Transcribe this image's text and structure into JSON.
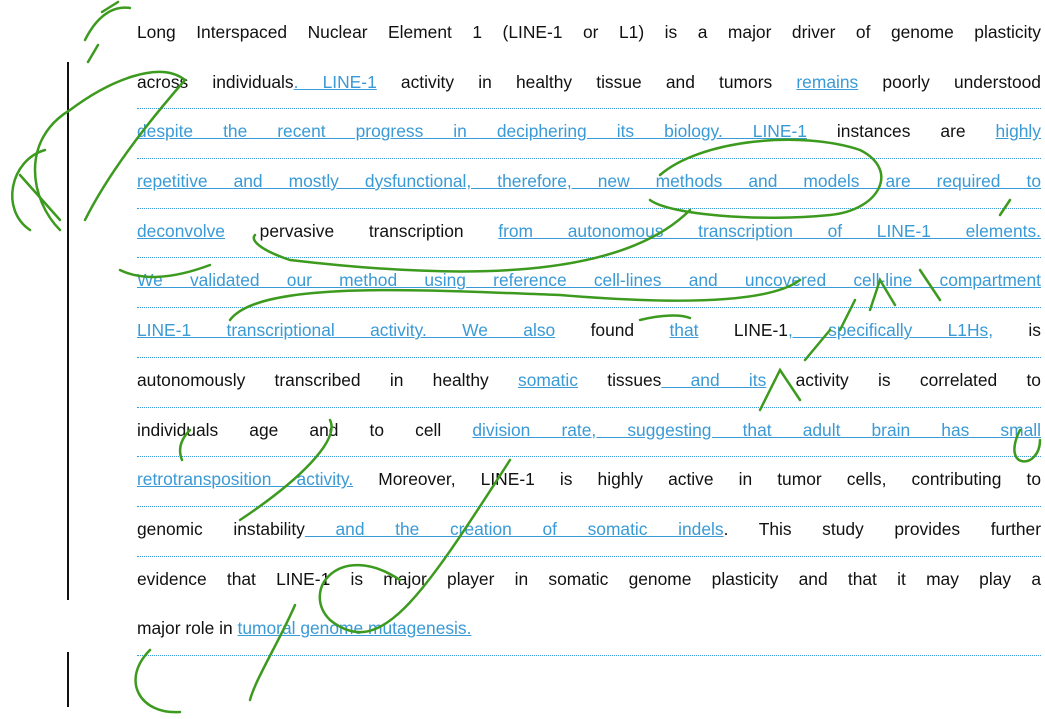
{
  "lines": [
    [
      {
        "text": "Long Interspaced Nuclear Element 1 (LINE-1 or L1) is a major driver of genome plasticity",
        "inserted": false
      }
    ],
    [
      {
        "text": "across individuals",
        "inserted": false
      },
      {
        "text": ". LINE-1",
        "inserted": true
      },
      {
        "text": " activity in healthy tissue and tumors ",
        "inserted": false
      },
      {
        "text": "remains",
        "inserted": true
      },
      {
        "text": " poorly understood",
        "inserted": false
      }
    ],
    [
      {
        "text": "despite the recent progress in deciphering its biology. LINE-1",
        "inserted": true
      },
      {
        "text": " instances are ",
        "inserted": false
      },
      {
        "text": "highly",
        "inserted": true
      }
    ],
    [
      {
        "text": "repetitive and mostly dysfunctional, therefore, new methods and models are required to",
        "inserted": true
      }
    ],
    [
      {
        "text": "deconvolve",
        "inserted": true
      },
      {
        "text": " pervasive transcription ",
        "inserted": false
      },
      {
        "text": "from autonomous transcription of LINE-1 elements.",
        "inserted": true
      }
    ],
    [
      {
        "text": "We validated our method using reference cell-lines and uncovered cell-line compartment",
        "inserted": true
      }
    ],
    [
      {
        "text": "LINE-1 transcriptional activity. We also",
        "inserted": true
      },
      {
        "text": " found ",
        "inserted": false
      },
      {
        "text": "that",
        "inserted": true
      },
      {
        "text": " LINE-1",
        "inserted": false
      },
      {
        "text": ", specifically L1Hs,",
        "inserted": true
      },
      {
        "text": " is",
        "inserted": false
      }
    ],
    [
      {
        "text": "autonomously transcribed in healthy ",
        "inserted": false
      },
      {
        "text": "somatic",
        "inserted": true
      },
      {
        "text": " tissues",
        "inserted": false
      },
      {
        "text": " and its",
        "inserted": true
      },
      {
        "text": " activity is correlated to",
        "inserted": false
      }
    ],
    [
      {
        "text": "individuals age and to cell ",
        "inserted": false
      },
      {
        "text": "division rate, suggesting that adult brain has small",
        "inserted": true
      }
    ],
    [
      {
        "text": "retrotransposition activity.",
        "inserted": true
      },
      {
        "text": " Moreover, LINE-1 is highly active in tumor cells, contributing to",
        "inserted": false
      }
    ],
    [
      {
        "text": "genomic instability",
        "inserted": false
      },
      {
        "text": " and the creation of somatic indels",
        "inserted": true
      },
      {
        "text": ". This study provides further",
        "inserted": false
      }
    ],
    [
      {
        "text": "evidence that LINE-1 is major player in somatic genome plasticity and that it may play a",
        "inserted": false
      }
    ],
    [
      {
        "text": "major role in ",
        "inserted": false
      },
      {
        "text": "tumoral genome mutagenesis.",
        "inserted": true
      }
    ]
  ]
}
